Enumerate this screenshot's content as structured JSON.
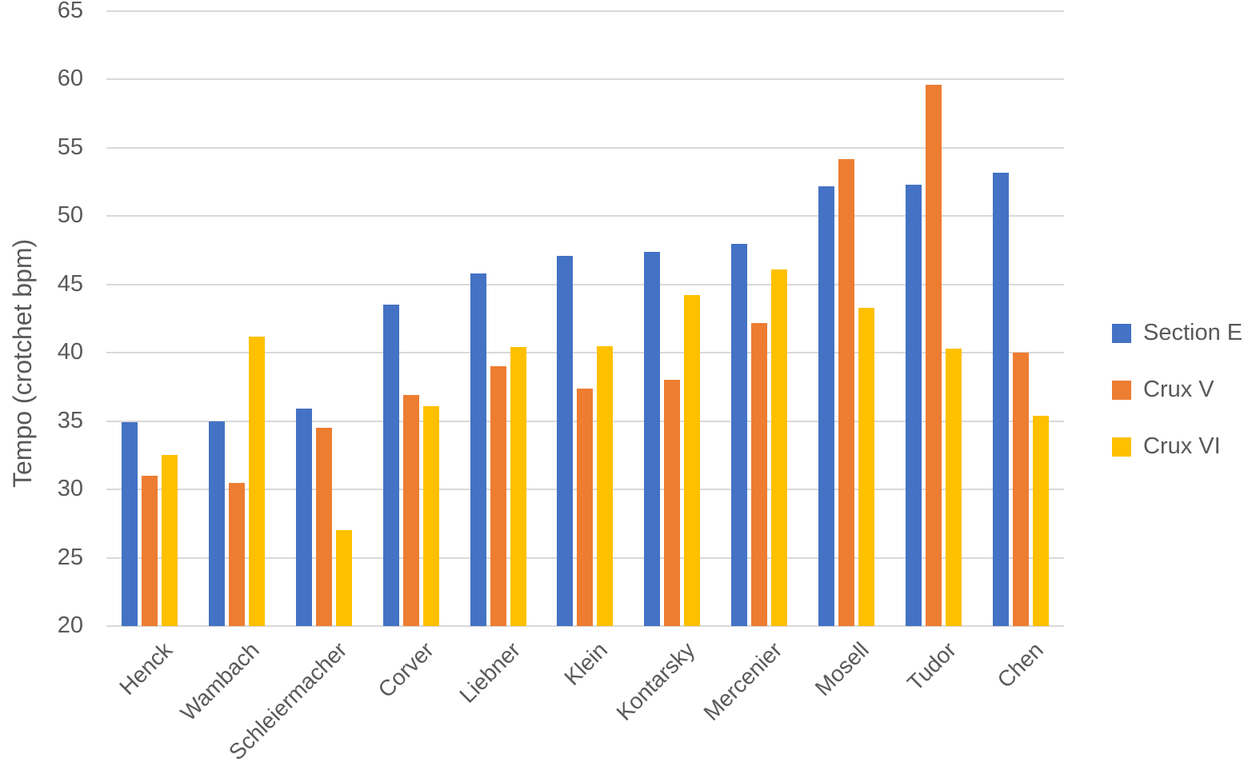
{
  "chart_data": {
    "type": "bar",
    "title": "",
    "xlabel": "",
    "ylabel": "Tempo (crotchet bpm)",
    "ylim": [
      20,
      65
    ],
    "yticks": [
      20,
      25,
      30,
      35,
      40,
      45,
      50,
      55,
      60,
      65
    ],
    "grid": true,
    "legend_position": "right",
    "categories": [
      "Henck",
      "Wambach",
      "Schleiermacher",
      "Corver",
      "Liebner",
      "Klein",
      "Kontarsky",
      "Mercenier",
      "Mosell",
      "Tudor",
      "Chen"
    ],
    "series": [
      {
        "name": "Section E",
        "color": "#4472C4",
        "values": [
          34.9,
          35.0,
          35.9,
          43.5,
          45.8,
          47.1,
          47.4,
          48.0,
          52.2,
          52.3,
          53.2
        ]
      },
      {
        "name": "Crux V",
        "color": "#ED7D31",
        "values": [
          31.0,
          30.5,
          34.5,
          36.9,
          39.0,
          37.4,
          38.0,
          42.2,
          54.2,
          59.6,
          40.0
        ]
      },
      {
        "name": "Crux VI",
        "color": "#FFC000",
        "values": [
          32.5,
          41.2,
          27.0,
          36.1,
          40.4,
          40.5,
          44.2,
          46.1,
          43.3,
          40.3,
          35.4
        ]
      }
    ]
  },
  "colors": {
    "gridline": "#D9D9D9",
    "axis_text": "#595959",
    "background": "#FFFFFF"
  }
}
